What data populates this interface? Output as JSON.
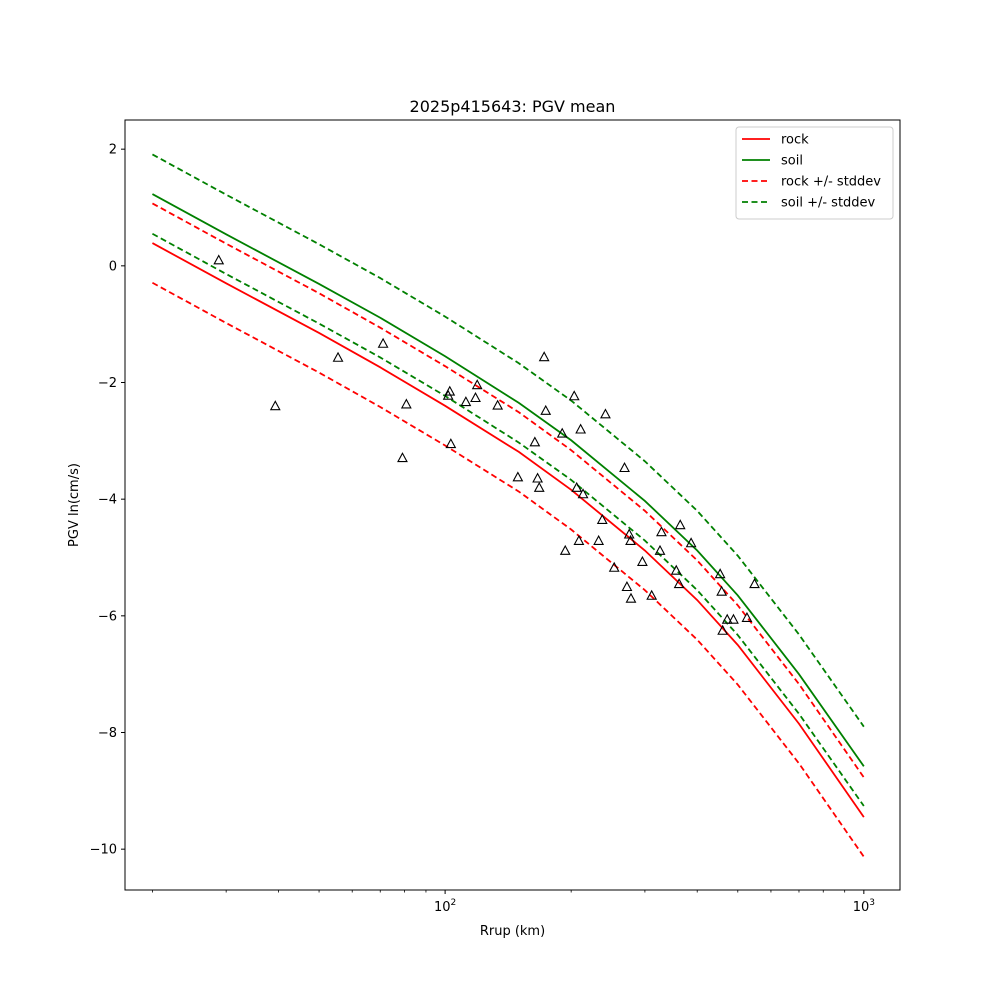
{
  "chart_data": {
    "type": "line",
    "title": "2025p415643: PGV mean",
    "xlabel": "Rrup (km)",
    "ylabel": "PGV ln(cm/s)",
    "xscale": "log",
    "xlim": [
      17.2,
      1220
    ],
    "ylim": [
      -10.7,
      2.5
    ],
    "grid": false,
    "legend_position": "top-right",
    "x_ticks": [
      {
        "value": 100,
        "label": "10",
        "exp": "2"
      },
      {
        "value": 1000,
        "label": "10",
        "exp": "3"
      }
    ],
    "y_ticks": [
      {
        "value": 2,
        "label": "2"
      },
      {
        "value": 0,
        "label": "0"
      },
      {
        "value": -2,
        "label": "−2"
      },
      {
        "value": -4,
        "label": "−4"
      },
      {
        "value": -6,
        "label": "−6"
      },
      {
        "value": -8,
        "label": "−8"
      },
      {
        "value": -10,
        "label": "−10"
      }
    ],
    "x": [
      20,
      30,
      50,
      70,
      100,
      150,
      200,
      300,
      400,
      500,
      700,
      1000
    ],
    "series": [
      {
        "name": "rock",
        "color": "#ff0000",
        "dash": "solid",
        "legend": true,
        "values": [
          0.39,
          -0.3,
          -1.15,
          -1.74,
          -2.4,
          -3.19,
          -3.84,
          -4.88,
          -5.73,
          -6.5,
          -7.85,
          -9.45
        ]
      },
      {
        "name": "soil",
        "color": "#008000",
        "dash": "solid",
        "legend": true,
        "values": [
          1.23,
          0.54,
          -0.31,
          -0.89,
          -1.55,
          -2.35,
          -2.99,
          -4.03,
          -4.88,
          -5.65,
          -7.0,
          -8.58
        ]
      },
      {
        "name": "rock +/- stddev",
        "color": "#ff0000",
        "dash": "dashed",
        "legend": true,
        "values": [
          1.07,
          0.38,
          -0.47,
          -1.06,
          -1.72,
          -2.51,
          -3.16,
          -4.2,
          -5.05,
          -5.82,
          -7.17,
          -8.77
        ]
      },
      {
        "name": "",
        "color": "#ff0000",
        "dash": "dashed",
        "legend": false,
        "values": [
          -0.29,
          -0.98,
          -1.83,
          -2.42,
          -3.08,
          -3.87,
          -4.52,
          -5.56,
          -6.41,
          -7.18,
          -8.53,
          -10.13
        ]
      },
      {
        "name": "soil +/- stddev",
        "color": "#008000",
        "dash": "dashed",
        "legend": true,
        "values": [
          1.91,
          1.22,
          0.37,
          -0.21,
          -0.87,
          -1.67,
          -2.31,
          -3.35,
          -4.2,
          -4.97,
          -6.32,
          -7.9
        ]
      },
      {
        "name": "",
        "color": "#008000",
        "dash": "dashed",
        "legend": false,
        "values": [
          0.55,
          -0.14,
          -0.99,
          -1.57,
          -2.23,
          -3.03,
          -3.67,
          -4.71,
          -5.56,
          -6.33,
          -7.68,
          -9.26
        ]
      }
    ],
    "observations": {
      "marker": "triangle",
      "points": [
        [
          28.8,
          0.1
        ],
        [
          39.3,
          -2.4
        ],
        [
          55.5,
          -1.57
        ],
        [
          71.1,
          -1.33
        ],
        [
          79.1,
          -3.29
        ],
        [
          80.8,
          -2.37
        ],
        [
          101.7,
          -2.22
        ],
        [
          102.6,
          -2.15
        ],
        [
          103.2,
          -3.05
        ],
        [
          112.1,
          -2.33
        ],
        [
          118.2,
          -2.26
        ],
        [
          119.3,
          -2.04
        ],
        [
          133.5,
          -2.39
        ],
        [
          149.2,
          -3.62
        ],
        [
          163.8,
          -3.02
        ],
        [
          166.3,
          -3.64
        ],
        [
          167.8,
          -3.8
        ],
        [
          172.4,
          -1.56
        ],
        [
          173.9,
          -2.48
        ],
        [
          190.4,
          -2.87
        ],
        [
          193.6,
          -4.88
        ],
        [
          203.4,
          -2.23
        ],
        [
          206.2,
          -3.8
        ],
        [
          208.7,
          -4.71
        ],
        [
          210.7,
          -2.8
        ],
        [
          213.5,
          -3.91
        ],
        [
          232.6,
          -4.71
        ],
        [
          237.3,
          -4.35
        ],
        [
          241.5,
          -2.54
        ],
        [
          253.4,
          -5.17
        ],
        [
          268.2,
          -3.46
        ],
        [
          271.8,
          -5.5
        ],
        [
          275.2,
          -4.6
        ],
        [
          277.2,
          -4.71
        ],
        [
          277.9,
          -5.7
        ],
        [
          295.9,
          -5.07
        ],
        [
          311.4,
          -5.65
        ],
        [
          326.0,
          -4.88
        ],
        [
          328.6,
          -4.56
        ],
        [
          356.4,
          -5.22
        ],
        [
          362.1,
          -5.45
        ],
        [
          364.3,
          -4.44
        ],
        [
          386.8,
          -4.75
        ],
        [
          453.7,
          -5.28
        ],
        [
          457.6,
          -5.58
        ],
        [
          460.1,
          -6.25
        ],
        [
          471.7,
          -6.06
        ],
        [
          488.2,
          -6.06
        ],
        [
          525.8,
          -6.03
        ],
        [
          548.2,
          -5.45
        ]
      ]
    }
  }
}
